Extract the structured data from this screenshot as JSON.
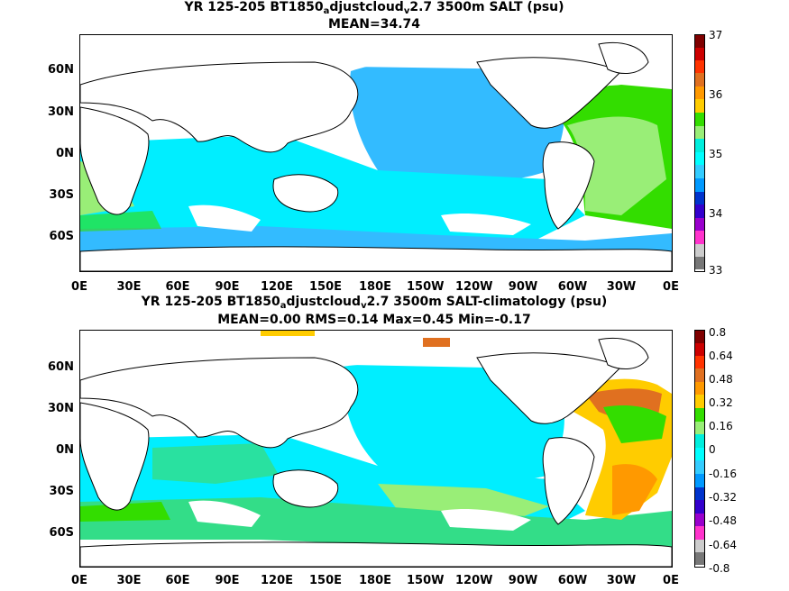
{
  "top": {
    "title_pre": "YR 125-205 BT1850",
    "title_sub1": "a",
    "title_mid": "djustcloud",
    "title_sub2": "v",
    "title_post": "2.7 3500m SALT (psu)",
    "subtitle": "MEAN=34.74",
    "colorbar_labels": [
      "37",
      "36",
      "35",
      "34",
      "33"
    ]
  },
  "bottom": {
    "title_pre": "YR 125-205 BT1850",
    "title_sub1": "a",
    "title_mid": "djustcloud",
    "title_sub2": "v",
    "title_post": "2.7 3500m SALT-climatology (psu)",
    "subtitle": "MEAN=0.00   RMS=0.14   Max=0.45   Min=-0.17",
    "colorbar_labels": [
      "0.8",
      "0.64",
      "0.48",
      "0.32",
      "0.16",
      "0",
      "-0.16",
      "-0.32",
      "-0.48",
      "-0.64",
      "-0.8"
    ]
  },
  "lat_labels": [
    "60N",
    "30N",
    "0N",
    "30S",
    "60S"
  ],
  "lon_labels": [
    "0E",
    "30E",
    "60E",
    "90E",
    "120E",
    "150E",
    "180E",
    "150W",
    "120W",
    "90W",
    "60W",
    "30W",
    "0E"
  ],
  "colors": {
    "colorbar": [
      "#7f0000",
      "#cc0000",
      "#ff3300",
      "#e07020",
      "#ff9900",
      "#ffcc00",
      "#33dd00",
      "#99ee77",
      "#00eedd",
      "#00ffff",
      "#33ccff",
      "#0099ff",
      "#0033cc",
      "#3300cc",
      "#9900cc",
      "#ff33cc",
      "#cccccc",
      "#777777"
    ]
  }
}
